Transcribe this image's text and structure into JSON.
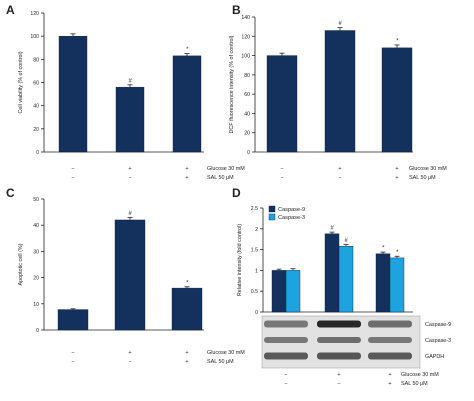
{
  "colors": {
    "dark_bar": "#14315e",
    "light_bar": "#1ca3e0",
    "axis": "#222222"
  },
  "conditions": {
    "glucose_label": "Glucose 30 mM",
    "sal_label": "SAL 50 μM",
    "glucose": [
      "−",
      "+",
      "+"
    ],
    "sal": [
      "−",
      "−",
      "+"
    ]
  },
  "chart_data": [
    {
      "panel": "A",
      "type": "bar",
      "ylabel": "Cell viability (% of control)",
      "ylim": [
        0,
        120
      ],
      "yticks": [
        0,
        20,
        40,
        60,
        80,
        100,
        120
      ],
      "series": [
        {
          "values": [
            100,
            56,
            83
          ],
          "errors": [
            2,
            2,
            2
          ],
          "annotations": [
            "",
            "#",
            "*"
          ]
        }
      ]
    },
    {
      "panel": "B",
      "type": "bar",
      "ylabel": "DCF fluorescence intensity (% of control)",
      "ylim": [
        0,
        140
      ],
      "yticks": [
        0,
        20,
        40,
        60,
        80,
        100,
        120,
        140
      ],
      "series": [
        {
          "values": [
            100,
            126,
            108
          ],
          "errors": [
            2.5,
            3,
            3
          ],
          "annotations": [
            "",
            "#",
            "*"
          ]
        }
      ]
    },
    {
      "panel": "C",
      "type": "bar",
      "ylabel": "Apoptotic cell (%)",
      "ylim": [
        0,
        50
      ],
      "yticks": [
        0,
        10,
        20,
        30,
        40,
        50
      ],
      "series": [
        {
          "values": [
            7.8,
            42,
            16
          ],
          "errors": [
            0.3,
            1,
            0.5
          ],
          "annotations": [
            "",
            "#",
            "*"
          ]
        }
      ]
    },
    {
      "panel": "D",
      "type": "bar",
      "ylabel": "Relative intensity (fold control)",
      "ylim": [
        0,
        2.5
      ],
      "yticks": [
        0,
        0.5,
        1.0,
        1.5,
        2.0,
        2.5
      ],
      "legend_position": "top-left",
      "series": [
        {
          "name": "Caspase-9",
          "values": [
            1.0,
            1.88,
            1.4
          ],
          "errors": [
            0.03,
            0.04,
            0.04
          ],
          "annotations": [
            "",
            "#",
            "*"
          ]
        },
        {
          "name": "Caspase-3",
          "values": [
            1.0,
            1.58,
            1.3
          ],
          "errors": [
            0.04,
            0.04,
            0.04
          ],
          "annotations": [
            "",
            "#",
            "*"
          ]
        }
      ],
      "blot_labels": [
        "Caspase-9",
        "Caspase-3",
        "GAPDH"
      ]
    }
  ]
}
